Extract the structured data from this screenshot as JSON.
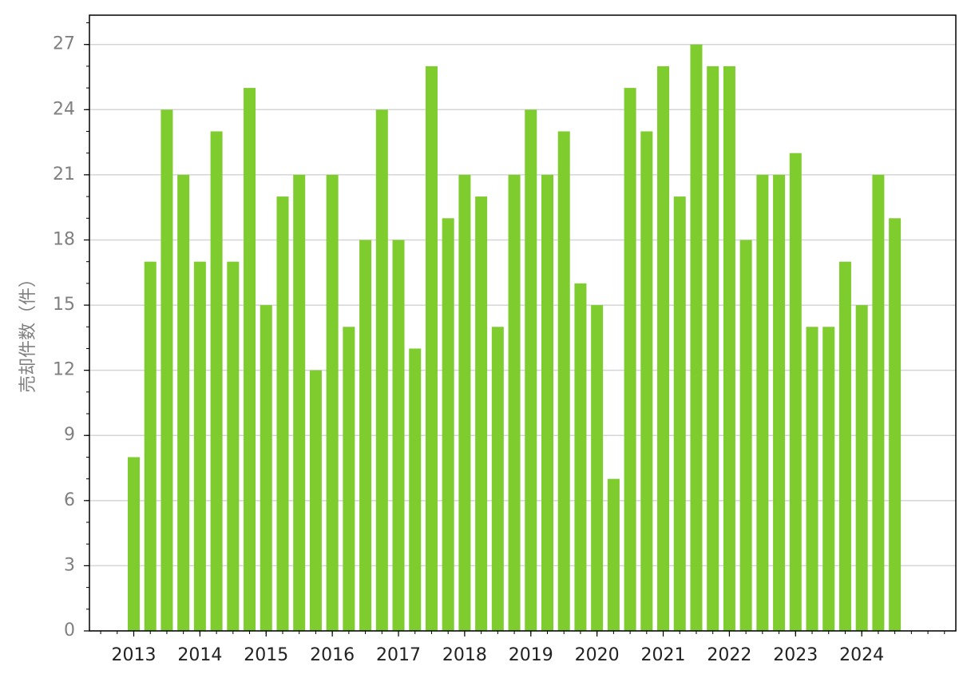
{
  "chart_data": {
    "type": "bar",
    "y_label": "売却件数（件）",
    "categories": [
      "2013",
      null,
      null,
      null,
      "2014",
      null,
      null,
      null,
      "2015",
      null,
      null,
      null,
      "2016",
      null,
      null,
      null,
      "2017",
      null,
      null,
      null,
      "2018",
      null,
      null,
      null,
      "2019",
      null,
      null,
      null,
      "2020",
      null,
      null,
      null,
      "2021",
      null,
      null,
      null,
      "2022",
      null,
      null,
      null,
      "2023",
      null,
      null,
      null,
      "2024",
      null,
      null
    ],
    "values": [
      8,
      17,
      24,
      21,
      17,
      23,
      17,
      25,
      15,
      20,
      21,
      12,
      21,
      14,
      18,
      24,
      18,
      13,
      26,
      19,
      21,
      20,
      14,
      21,
      24,
      21,
      23,
      16,
      15,
      7,
      25,
      23,
      26,
      20,
      27,
      26,
      26,
      18,
      21,
      21,
      22,
      14,
      14,
      17,
      15,
      21,
      19
    ],
    "color": "#7fcc2f",
    "ylim": [
      0,
      28.35
    ],
    "yticks": [
      0,
      3,
      6,
      9,
      12,
      15,
      18,
      21,
      24,
      27
    ],
    "grid": true
  }
}
